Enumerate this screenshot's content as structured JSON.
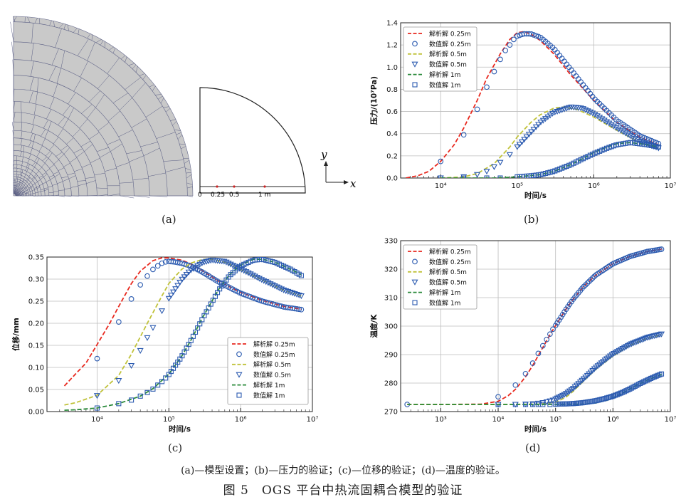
{
  "captions": {
    "a": "(a)",
    "b": "(b)",
    "c": "(c)",
    "d": "(d)",
    "note": "(a)—模型设置；(b)—压力的验证；(c)—位移的验证；(d)—温度的验证。",
    "figure": "图 5　OGS 平台中热流固耦合模型的验证"
  },
  "panel_a": {
    "tick_labels": [
      "0",
      "0.25",
      "0.5",
      "1 m"
    ],
    "axis_y": "y",
    "axis_x": "x",
    "colors": {
      "mesh_fill": "#c9c9c9",
      "mesh_line": "#5a5e84",
      "marker": "#cc2222"
    }
  },
  "legend": {
    "entries": [
      {
        "label": "解析解 0.25m",
        "kind": "line",
        "color": "#e8281e"
      },
      {
        "label": "数值解 0.25m",
        "kind": "circle",
        "color": "#2c5bb0"
      },
      {
        "label": "解析解 0.5m",
        "kind": "line",
        "color": "#c0c23a"
      },
      {
        "label": "数值解 0.5m",
        "kind": "triangle",
        "color": "#2c5bb0"
      },
      {
        "label": "解析解 1m",
        "kind": "line",
        "color": "#2a8a3a"
      },
      {
        "label": "数值解 1m",
        "kind": "square",
        "color": "#2c5bb0"
      }
    ]
  },
  "chart_data": [
    {
      "id": "b",
      "type": "line",
      "xscale": "log",
      "xlabel": "时间/s",
      "ylabel": "压力/(10⁷Pa)",
      "xlim": [
        3000,
        10000000
      ],
      "ylim": [
        0,
        1.4
      ],
      "xtick_labels": [
        "10⁴",
        "10⁵",
        "10⁶",
        "10⁷"
      ],
      "xticks": [
        10000,
        100000,
        1000000,
        10000000
      ],
      "ytick_labels": [
        "0.0",
        "0.2",
        "0.4",
        "0.6",
        "0.8",
        "1.0",
        "1.2",
        "1.4"
      ],
      "yticks": [
        0,
        0.2,
        0.4,
        0.6,
        0.8,
        1.0,
        1.2,
        1.4
      ],
      "legend_position": "top-left",
      "series": [
        {
          "name": "解析解 0.25m",
          "style": "dashed",
          "color": "#e8281e",
          "x": [
            3500,
            5000,
            7000,
            10000,
            15000,
            20000,
            30000,
            40000,
            60000,
            80000,
            100000,
            120000,
            150000,
            200000,
            300000,
            500000,
            1000000,
            2000000,
            4000000,
            7000000
          ],
          "y": [
            0.0,
            0.02,
            0.06,
            0.15,
            0.3,
            0.45,
            0.7,
            0.9,
            1.12,
            1.25,
            1.31,
            1.32,
            1.3,
            1.24,
            1.12,
            0.93,
            0.7,
            0.5,
            0.37,
            0.3
          ]
        },
        {
          "name": "数值解 0.25m",
          "style": "circle",
          "color": "#2c5bb0",
          "x": [
            10000,
            20000,
            30000,
            40000,
            50000,
            60000,
            70000,
            80000,
            90000,
            100000,
            120000,
            150000,
            200000,
            300000,
            500000,
            1000000,
            2000000,
            4000000,
            7000000
          ],
          "y": [
            0.15,
            0.39,
            0.62,
            0.82,
            0.96,
            1.07,
            1.15,
            1.2,
            1.25,
            1.28,
            1.3,
            1.3,
            1.27,
            1.17,
            0.98,
            0.72,
            0.52,
            0.38,
            0.31
          ]
        },
        {
          "name": "解析解 0.5m",
          "style": "dashed",
          "color": "#c0c23a",
          "x": [
            10000,
            20000,
            30000,
            50000,
            80000,
            100000,
            150000,
            200000,
            300000,
            400000,
            600000,
            1000000,
            2000000,
            4000000,
            7000000
          ],
          "y": [
            0.0,
            0.01,
            0.04,
            0.13,
            0.28,
            0.37,
            0.5,
            0.57,
            0.63,
            0.64,
            0.62,
            0.55,
            0.43,
            0.32,
            0.27
          ]
        },
        {
          "name": "数值解 0.5m",
          "style": "triangle",
          "color": "#2c5bb0",
          "x": [
            10000,
            20000,
            30000,
            40000,
            50000,
            60000,
            80000,
            100000,
            150000,
            200000,
            300000,
            500000,
            700000,
            1000000,
            2000000,
            4000000,
            7000000
          ],
          "y": [
            0.0,
            0.01,
            0.03,
            0.06,
            0.1,
            0.14,
            0.21,
            0.28,
            0.41,
            0.5,
            0.59,
            0.64,
            0.63,
            0.58,
            0.45,
            0.33,
            0.27
          ]
        },
        {
          "name": "解析解 1m",
          "style": "dashed",
          "color": "#2a8a3a",
          "x": [
            10000,
            50000,
            100000,
            200000,
            300000,
            500000,
            800000,
            1000000,
            1500000,
            2000000,
            3000000,
            5000000,
            7000000
          ],
          "y": [
            0.0,
            0.0,
            0.01,
            0.03,
            0.06,
            0.12,
            0.19,
            0.23,
            0.28,
            0.31,
            0.32,
            0.3,
            0.28
          ]
        },
        {
          "name": "数值解 1m",
          "style": "square",
          "color": "#2c5bb0",
          "x": [
            10000,
            20000,
            40000,
            60000,
            100000,
            150000,
            200000,
            300000,
            500000,
            700000,
            1000000,
            1500000,
            2000000,
            3000000,
            5000000,
            7000000
          ],
          "y": [
            0.0,
            0.0,
            0.0,
            0.0,
            0.01,
            0.02,
            0.03,
            0.06,
            0.12,
            0.17,
            0.22,
            0.27,
            0.3,
            0.32,
            0.3,
            0.28
          ]
        }
      ]
    },
    {
      "id": "c",
      "type": "line",
      "xscale": "log",
      "xlabel": "时间/s",
      "ylabel": "位移/mm",
      "xlim": [
        2000,
        10000000
      ],
      "ylim": [
        0,
        0.35
      ],
      "xtick_labels": [
        "10⁴",
        "10⁵",
        "10⁶",
        "10⁷"
      ],
      "xticks": [
        10000,
        100000,
        1000000,
        10000000
      ],
      "ytick_labels": [
        "0.00",
        "0.05",
        "0.10",
        "0.15",
        "0.20",
        "0.25",
        "0.30",
        "0.35"
      ],
      "yticks": [
        0,
        0.05,
        0.1,
        0.15,
        0.2,
        0.25,
        0.3,
        0.35
      ],
      "legend_position": "center-right",
      "series": [
        {
          "name": "解析解 0.25m",
          "style": "dashed",
          "color": "#e8281e",
          "x": [
            3500,
            5000,
            7000,
            10000,
            15000,
            20000,
            30000,
            40000,
            60000,
            80000,
            100000,
            150000,
            200000,
            300000,
            500000,
            1000000,
            2000000,
            4000000,
            7000000
          ],
          "y": [
            0.058,
            0.085,
            0.11,
            0.152,
            0.2,
            0.238,
            0.29,
            0.318,
            0.342,
            0.348,
            0.348,
            0.343,
            0.335,
            0.318,
            0.295,
            0.27,
            0.252,
            0.238,
            0.232
          ]
        },
        {
          "name": "数值解 0.25m",
          "style": "circle",
          "color": "#2c5bb0",
          "x": [
            10000,
            20000,
            30000,
            40000,
            50000,
            60000,
            70000,
            80000,
            90000,
            100000,
            120000,
            150000,
            200000,
            300000,
            500000,
            1000000,
            2000000,
            4000000,
            7000000
          ],
          "y": [
            0.12,
            0.203,
            0.255,
            0.287,
            0.307,
            0.322,
            0.33,
            0.336,
            0.339,
            0.34,
            0.339,
            0.336,
            0.33,
            0.315,
            0.293,
            0.268,
            0.25,
            0.237,
            0.231
          ]
        },
        {
          "name": "解析解 0.5m",
          "style": "dashed",
          "color": "#c0c23a",
          "x": [
            3500,
            5000,
            10000,
            20000,
            30000,
            50000,
            80000,
            100000,
            150000,
            200000,
            300000,
            400000,
            600000,
            1000000,
            2000000,
            4000000,
            7000000
          ],
          "y": [
            0.015,
            0.02,
            0.037,
            0.082,
            0.13,
            0.2,
            0.262,
            0.29,
            0.322,
            0.336,
            0.345,
            0.345,
            0.338,
            0.322,
            0.298,
            0.275,
            0.262
          ]
        },
        {
          "name": "数值解 0.5m",
          "style": "triangle",
          "color": "#2c5bb0",
          "x": [
            10000,
            20000,
            30000,
            40000,
            50000,
            60000,
            80000,
            100000,
            150000,
            200000,
            300000,
            400000,
            600000,
            1000000,
            2000000,
            4000000,
            7000000
          ],
          "y": [
            0.036,
            0.07,
            0.104,
            0.138,
            0.167,
            0.19,
            0.228,
            0.256,
            0.298,
            0.32,
            0.338,
            0.343,
            0.34,
            0.323,
            0.298,
            0.275,
            0.262
          ]
        },
        {
          "name": "解析解 1m",
          "style": "dashed",
          "color": "#2a8a3a",
          "x": [
            3500,
            5000,
            10000,
            20000,
            40000,
            60000,
            100000,
            150000,
            200000,
            300000,
            500000,
            700000,
            1000000,
            1500000,
            2000000,
            3000000,
            5000000,
            7000000
          ],
          "y": [
            0.003,
            0.004,
            0.008,
            0.018,
            0.035,
            0.052,
            0.085,
            0.125,
            0.16,
            0.215,
            0.278,
            0.31,
            0.332,
            0.345,
            0.345,
            0.338,
            0.322,
            0.31
          ]
        },
        {
          "name": "数值解 1m",
          "style": "square",
          "color": "#2c5bb0",
          "x": [
            10000,
            20000,
            30000,
            40000,
            50000,
            60000,
            70000,
            80000,
            90000,
            100000,
            150000,
            200000,
            300000,
            500000,
            700000,
            1000000,
            1500000,
            2000000,
            3000000,
            5000000,
            7000000
          ],
          "y": [
            0.008,
            0.018,
            0.026,
            0.035,
            0.043,
            0.051,
            0.06,
            0.068,
            0.076,
            0.084,
            0.124,
            0.159,
            0.213,
            0.276,
            0.308,
            0.33,
            0.343,
            0.345,
            0.338,
            0.322,
            0.308
          ]
        }
      ]
    },
    {
      "id": "d",
      "type": "line",
      "xscale": "log",
      "xlabel": "时间/s",
      "ylabel": "温度/K",
      "xlim": [
        200,
        10000000
      ],
      "ylim": [
        270,
        330
      ],
      "xtick_labels": [
        "10³",
        "10⁴",
        "10⁵",
        "10⁶",
        "10⁷"
      ],
      "xticks": [
        1000,
        10000,
        100000,
        1000000,
        10000000
      ],
      "ytick_labels": [
        "270",
        "280",
        "290",
        "300",
        "310",
        "320",
        "330"
      ],
      "yticks": [
        270,
        280,
        290,
        300,
        310,
        320,
        330
      ],
      "legend_position": "top-left",
      "series": [
        {
          "name": "解析解 0.25m",
          "style": "dashed",
          "color": "#e8281e",
          "x": [
            260,
            1000,
            5000,
            10000,
            15000,
            20000,
            30000,
            40000,
            60000,
            80000,
            100000,
            150000,
            200000,
            300000,
            500000,
            1000000,
            2000000,
            4000000,
            7000000
          ],
          "y": [
            272.5,
            272.5,
            272.6,
            273.6,
            275.6,
            277.8,
            282.2,
            286.2,
            292.5,
            297.0,
            300.2,
            305.8,
            309.3,
            313.6,
            317.9,
            321.9,
            324.5,
            326.2,
            327.0
          ]
        },
        {
          "name": "数值解 0.25m",
          "style": "circle",
          "color": "#2c5bb0",
          "x": [
            260,
            10000,
            20000,
            30000,
            40000,
            50000,
            60000,
            70000,
            80000,
            90000,
            100000,
            150000,
            200000,
            300000,
            500000,
            1000000,
            2000000,
            4000000,
            7000000
          ],
          "y": [
            272.5,
            275.2,
            279.3,
            283.3,
            287.0,
            290.4,
            293.1,
            295.3,
            297.2,
            298.9,
            300.2,
            305.7,
            309.3,
            313.6,
            317.9,
            321.9,
            324.5,
            326.2,
            327.0
          ]
        },
        {
          "name": "解析解 0.5m",
          "style": "dashed",
          "color": "#c0c23a",
          "x": [
            260,
            10000,
            50000,
            100000,
            150000,
            200000,
            300000,
            500000,
            1000000,
            2000000,
            4000000,
            7000000
          ],
          "y": [
            272.5,
            272.5,
            272.6,
            273.3,
            275.0,
            277.0,
            280.5,
            284.8,
            289.5,
            293.2,
            295.8,
            297.0
          ]
        },
        {
          "name": "数值解 0.5m",
          "style": "triangle",
          "color": "#2c5bb0",
          "x": [
            10000,
            20000,
            30000,
            40000,
            50000,
            60000,
            70000,
            80000,
            90000,
            100000,
            150000,
            200000,
            300000,
            500000,
            700000,
            1000000,
            2000000,
            4000000,
            7000000
          ],
          "y": [
            272.5,
            272.5,
            272.6,
            272.7,
            272.9,
            273.1,
            273.4,
            273.7,
            274.0,
            274.4,
            276.2,
            278.0,
            281.2,
            285.4,
            287.8,
            290.2,
            293.6,
            296.0,
            297.2
          ]
        },
        {
          "name": "解析解 1m",
          "style": "dashed",
          "color": "#2a8a3a",
          "x": [
            260,
            10000,
            100000,
            300000,
            500000,
            800000,
            1000000,
            1500000,
            2000000,
            3000000,
            5000000,
            7000000
          ],
          "y": [
            272.5,
            272.5,
            272.5,
            272.6,
            273.0,
            274.0,
            274.8,
            276.6,
            278.0,
            279.9,
            281.9,
            283.0
          ]
        },
        {
          "name": "数值解 1m",
          "style": "square",
          "color": "#2c5bb0",
          "x": [
            10000,
            20000,
            30000,
            40000,
            50000,
            60000,
            80000,
            100000,
            150000,
            200000,
            300000,
            500000,
            700000,
            1000000,
            1500000,
            2000000,
            3000000,
            5000000,
            7000000
          ],
          "y": [
            272.5,
            272.5,
            272.5,
            272.5,
            272.5,
            272.5,
            272.5,
            272.6,
            272.7,
            272.8,
            273.1,
            273.8,
            274.5,
            275.4,
            276.8,
            278.0,
            279.9,
            282.0,
            283.2
          ]
        }
      ]
    }
  ]
}
